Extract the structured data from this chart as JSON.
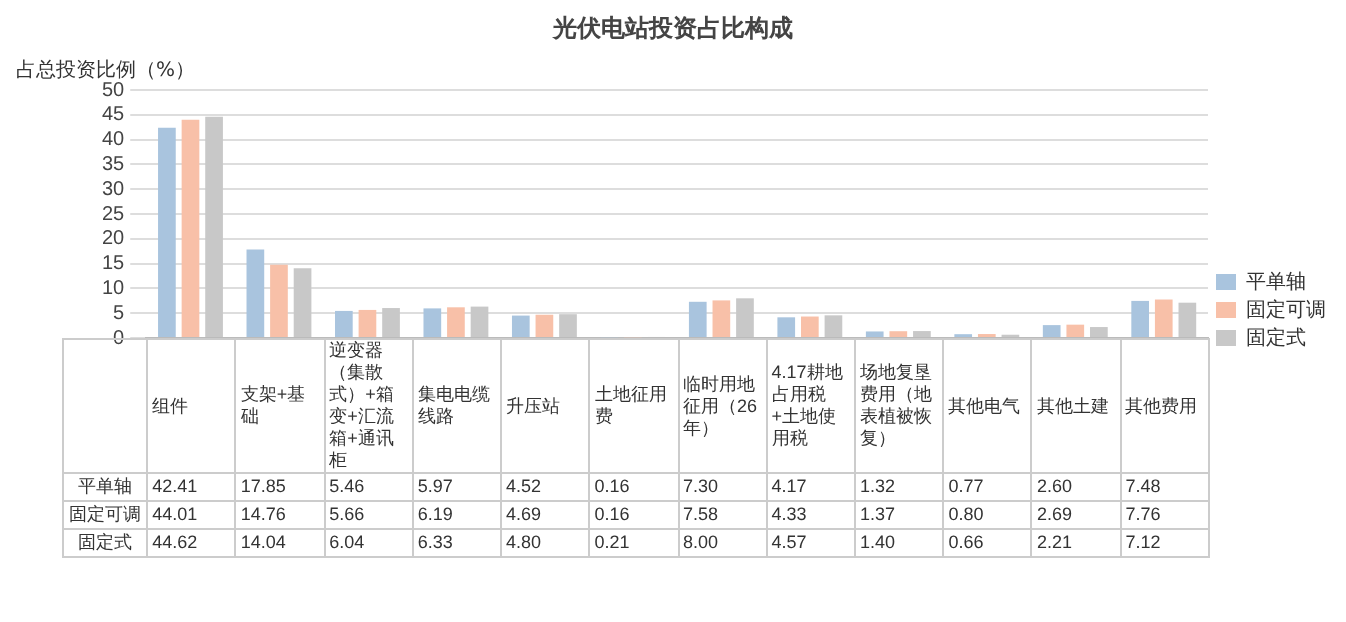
{
  "chart_data": {
    "type": "bar",
    "title": "光伏电站投资占比构成",
    "ylabel": "占总投资比例（%）",
    "categories": [
      "组件",
      "支架+基础",
      "逆变器（集散式）+箱变+汇流箱+通讯柜",
      "集电电缆线路",
      "升压站",
      "土地征用费",
      "临时用地征用（26年）",
      "4.17耕地占用税+土地使用税",
      "场地复垦费用（地表植被恢复）",
      "其他电气",
      "其他土建",
      "其他费用"
    ],
    "series": [
      {
        "name": "平单轴",
        "color": "#a9c4de",
        "values": [
          42.41,
          17.85,
          5.46,
          5.97,
          4.52,
          0.16,
          7.3,
          4.17,
          1.32,
          0.77,
          2.6,
          7.48
        ],
        "value_labels": [
          "42.41",
          "17.85",
          "5.46",
          "5.97",
          "4.52",
          "0.16",
          "7.30",
          "4.17",
          "1.32",
          "0.77",
          "2.60",
          "7.48"
        ]
      },
      {
        "name": "固定可调",
        "color": "#f8c0a8",
        "values": [
          44.01,
          14.76,
          5.66,
          6.19,
          4.69,
          0.16,
          7.58,
          4.33,
          1.37,
          0.8,
          2.69,
          7.76
        ],
        "value_labels": [
          "44.01",
          "14.76",
          "5.66",
          "6.19",
          "4.69",
          "0.16",
          "7.58",
          "4.33",
          "1.37",
          "0.80",
          "2.69",
          "7.76"
        ]
      },
      {
        "name": "固定式",
        "color": "#c8c8c8",
        "values": [
          44.62,
          14.04,
          6.04,
          6.33,
          4.8,
          0.21,
          8.0,
          4.57,
          1.4,
          0.66,
          2.21,
          7.12
        ],
        "value_labels": [
          "44.62",
          "14.04",
          "6.04",
          "6.33",
          "4.80",
          "0.21",
          "8.00",
          "4.57",
          "1.40",
          "0.66",
          "2.21",
          "7.12"
        ]
      }
    ],
    "ylim": [
      0,
      50
    ],
    "yticks": [
      0,
      5,
      10,
      15,
      20,
      25,
      30,
      35,
      40,
      45,
      50
    ],
    "grid": "y",
    "legend": "right"
  }
}
